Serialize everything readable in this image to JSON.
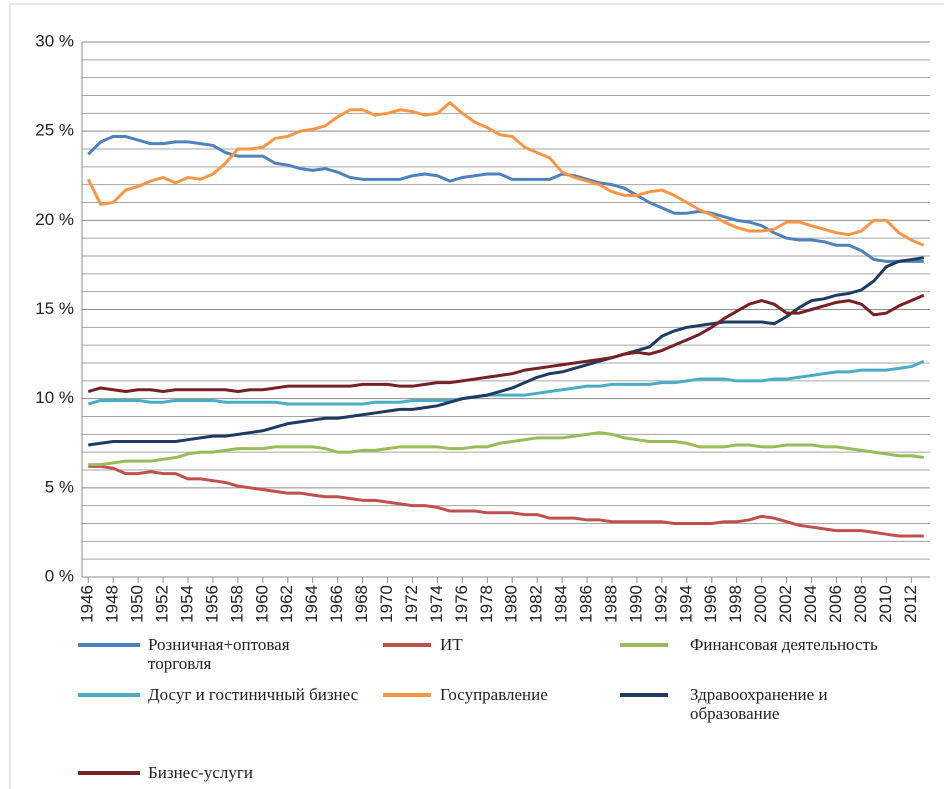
{
  "chart_data": {
    "type": "line",
    "x": [
      1946,
      1947,
      1948,
      1949,
      1950,
      1951,
      1952,
      1953,
      1954,
      1955,
      1956,
      1957,
      1958,
      1959,
      1960,
      1961,
      1962,
      1963,
      1964,
      1965,
      1966,
      1967,
      1968,
      1969,
      1970,
      1971,
      1972,
      1973,
      1974,
      1975,
      1976,
      1977,
      1978,
      1979,
      1980,
      1981,
      1982,
      1983,
      1984,
      1985,
      1986,
      1987,
      1988,
      1989,
      1990,
      1991,
      1992,
      1993,
      1994,
      1995,
      1996,
      1997,
      1998,
      1999,
      2000,
      2001,
      2002,
      2003,
      2004,
      2005,
      2006,
      2007,
      2008,
      2009,
      2010,
      2011,
      2012,
      2013
    ],
    "xlim": [
      1945.5,
      2013.5
    ],
    "xticks": [
      1946,
      1948,
      1950,
      1952,
      1954,
      1956,
      1958,
      1960,
      1962,
      1964,
      1966,
      1968,
      1970,
      1972,
      1974,
      1976,
      1978,
      1980,
      1982,
      1984,
      1986,
      1988,
      1990,
      1992,
      1994,
      1996,
      1998,
      2000,
      2002,
      2004,
      2006,
      2008,
      2010,
      2012
    ],
    "ylim": [
      0,
      30
    ],
    "yticks": [
      {
        "value": 0,
        "label": "0 %"
      },
      {
        "value": 5,
        "label": "5 %"
      },
      {
        "value": 10,
        "label": "10 %"
      },
      {
        "value": 15,
        "label": "15 %"
      },
      {
        "value": 20,
        "label": "20 %"
      },
      {
        "value": 25,
        "label": "25 %"
      },
      {
        "value": 30,
        "label": "30 %"
      }
    ],
    "minor_yticks": [
      1,
      2,
      3,
      4,
      6,
      7,
      8,
      9,
      11,
      12,
      13,
      14,
      16,
      17,
      18,
      19,
      21,
      22,
      23,
      24,
      26,
      27,
      28,
      29
    ],
    "grid": true,
    "series": [
      {
        "name": "Розничная+оптовая торговля",
        "color": "#4f81bd",
        "values": [
          23.7,
          24.4,
          24.7,
          24.7,
          24.5,
          24.3,
          24.3,
          24.4,
          24.4,
          24.3,
          24.2,
          23.8,
          23.6,
          23.6,
          23.6,
          23.2,
          23.1,
          22.9,
          22.8,
          22.9,
          22.7,
          22.4,
          22.3,
          22.3,
          22.3,
          22.3,
          22.5,
          22.6,
          22.5,
          22.2,
          22.4,
          22.5,
          22.6,
          22.6,
          22.3,
          22.3,
          22.3,
          22.3,
          22.6,
          22.5,
          22.3,
          22.1,
          22.0,
          21.8,
          21.4,
          21.0,
          20.7,
          20.4,
          20.4,
          20.5,
          20.4,
          20.2,
          20.0,
          19.9,
          19.7,
          19.3,
          19.0,
          18.9,
          18.9,
          18.8,
          18.6,
          18.6,
          18.3,
          17.8,
          17.7,
          17.7,
          17.7,
          17.7
        ]
      },
      {
        "name": "ИТ",
        "color": "#c0504d",
        "values": [
          6.2,
          6.2,
          6.1,
          5.8,
          5.8,
          5.9,
          5.8,
          5.8,
          5.5,
          5.5,
          5.4,
          5.3,
          5.1,
          5.0,
          4.9,
          4.8,
          4.7,
          4.7,
          4.6,
          4.5,
          4.5,
          4.4,
          4.3,
          4.3,
          4.2,
          4.1,
          4.0,
          4.0,
          3.9,
          3.7,
          3.7,
          3.7,
          3.6,
          3.6,
          3.6,
          3.5,
          3.5,
          3.3,
          3.3,
          3.3,
          3.2,
          3.2,
          3.1,
          3.1,
          3.1,
          3.1,
          3.1,
          3.0,
          3.0,
          3.0,
          3.0,
          3.1,
          3.1,
          3.2,
          3.4,
          3.3,
          3.1,
          2.9,
          2.8,
          2.7,
          2.6,
          2.6,
          2.6,
          2.5,
          2.4,
          2.3,
          2.3,
          2.3
        ]
      },
      {
        "name": "Финансовая деятельность",
        "color": "#9bbb59",
        "values": [
          6.3,
          6.3,
          6.4,
          6.5,
          6.5,
          6.5,
          6.6,
          6.7,
          6.9,
          7.0,
          7.0,
          7.1,
          7.2,
          7.2,
          7.2,
          7.3,
          7.3,
          7.3,
          7.3,
          7.2,
          7.0,
          7.0,
          7.1,
          7.1,
          7.2,
          7.3,
          7.3,
          7.3,
          7.3,
          7.2,
          7.2,
          7.3,
          7.3,
          7.5,
          7.6,
          7.7,
          7.8,
          7.8,
          7.8,
          7.9,
          8.0,
          8.1,
          8.0,
          7.8,
          7.7,
          7.6,
          7.6,
          7.6,
          7.5,
          7.3,
          7.3,
          7.3,
          7.4,
          7.4,
          7.3,
          7.3,
          7.4,
          7.4,
          7.4,
          7.3,
          7.3,
          7.2,
          7.1,
          7.0,
          6.9,
          6.8,
          6.8,
          6.7
        ]
      },
      {
        "name": "Досуг и гостиничный бизнес",
        "color": "#4bacc6",
        "values": [
          9.7,
          9.9,
          9.9,
          9.9,
          9.9,
          9.8,
          9.8,
          9.9,
          9.9,
          9.9,
          9.9,
          9.8,
          9.8,
          9.8,
          9.8,
          9.8,
          9.7,
          9.7,
          9.7,
          9.7,
          9.7,
          9.7,
          9.7,
          9.8,
          9.8,
          9.8,
          9.9,
          9.9,
          9.9,
          9.9,
          10.0,
          10.1,
          10.2,
          10.2,
          10.2,
          10.2,
          10.3,
          10.4,
          10.5,
          10.6,
          10.7,
          10.7,
          10.8,
          10.8,
          10.8,
          10.8,
          10.9,
          10.9,
          11.0,
          11.1,
          11.1,
          11.1,
          11.0,
          11.0,
          11.0,
          11.1,
          11.1,
          11.2,
          11.3,
          11.4,
          11.5,
          11.5,
          11.6,
          11.6,
          11.6,
          11.7,
          11.8,
          12.1
        ]
      },
      {
        "name": "Госуправление",
        "color": "#f79646",
        "values": [
          22.3,
          20.9,
          21.0,
          21.7,
          21.9,
          22.2,
          22.4,
          22.1,
          22.4,
          22.3,
          22.6,
          23.2,
          24.0,
          24.0,
          24.1,
          24.6,
          24.7,
          25.0,
          25.1,
          25.3,
          25.8,
          26.2,
          26.2,
          25.9,
          26.0,
          26.2,
          26.1,
          25.9,
          26.0,
          26.6,
          26.0,
          25.5,
          25.2,
          24.8,
          24.7,
          24.1,
          23.8,
          23.5,
          22.7,
          22.4,
          22.2,
          22.0,
          21.6,
          21.4,
          21.4,
          21.6,
          21.7,
          21.4,
          21.0,
          20.6,
          20.3,
          19.9,
          19.6,
          19.4,
          19.4,
          19.5,
          19.9,
          19.9,
          19.7,
          19.5,
          19.3,
          19.2,
          19.4,
          20.0,
          20.0,
          19.3,
          18.9,
          18.6
        ]
      },
      {
        "name": "Здравоохранение и образование",
        "color": "#1f3b63",
        "values": [
          7.4,
          7.5,
          7.6,
          7.6,
          7.6,
          7.6,
          7.6,
          7.6,
          7.7,
          7.8,
          7.9,
          7.9,
          8.0,
          8.1,
          8.2,
          8.4,
          8.6,
          8.7,
          8.8,
          8.9,
          8.9,
          9.0,
          9.1,
          9.2,
          9.3,
          9.4,
          9.4,
          9.5,
          9.6,
          9.8,
          10.0,
          10.1,
          10.2,
          10.4,
          10.6,
          10.9,
          11.2,
          11.4,
          11.5,
          11.7,
          11.9,
          12.1,
          12.3,
          12.5,
          12.7,
          12.9,
          13.5,
          13.8,
          14.0,
          14.1,
          14.2,
          14.3,
          14.3,
          14.3,
          14.3,
          14.2,
          14.6,
          15.1,
          15.5,
          15.6,
          15.8,
          15.9,
          16.1,
          16.6,
          17.4,
          17.7,
          17.8,
          17.9
        ]
      },
      {
        "name": "Бизнес-услуги",
        "color": "#772025",
        "values": [
          10.4,
          10.6,
          10.5,
          10.4,
          10.5,
          10.5,
          10.4,
          10.5,
          10.5,
          10.5,
          10.5,
          10.5,
          10.4,
          10.5,
          10.5,
          10.6,
          10.7,
          10.7,
          10.7,
          10.7,
          10.7,
          10.7,
          10.8,
          10.8,
          10.8,
          10.7,
          10.7,
          10.8,
          10.9,
          10.9,
          11.0,
          11.1,
          11.2,
          11.3,
          11.4,
          11.6,
          11.7,
          11.8,
          11.9,
          12.0,
          12.1,
          12.2,
          12.3,
          12.5,
          12.6,
          12.5,
          12.7,
          13.0,
          13.3,
          13.6,
          14.0,
          14.5,
          14.9,
          15.3,
          15.5,
          15.3,
          14.8,
          14.8,
          15.0,
          15.2,
          15.4,
          15.5,
          15.3,
          14.7,
          14.8,
          15.2,
          15.5,
          15.8
        ]
      }
    ]
  }
}
